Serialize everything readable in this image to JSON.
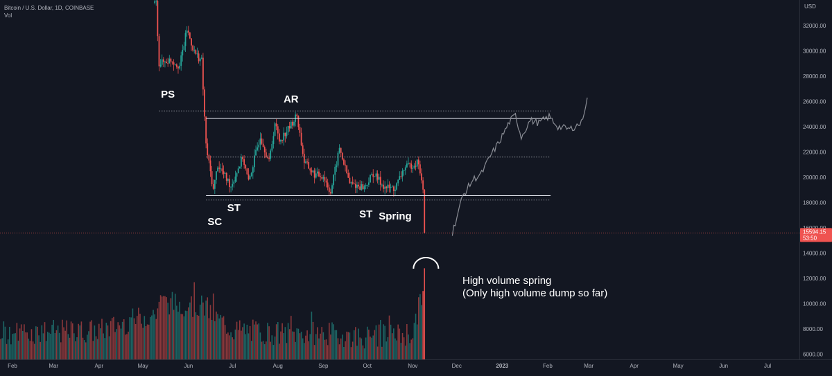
{
  "header": {
    "symbol_line": "Bitcoin / U.S. Dollar, 1D, COINBASE",
    "vol_label": "Vol"
  },
  "colors": {
    "background": "#131722",
    "up": "#26a69a",
    "down": "#ef5350",
    "projection": "#8a8d95",
    "axis_text": "#b2b5be",
    "price_tag": "#ef5350"
  },
  "chart_data": {
    "type": "candlestick",
    "axis_currency": "USD",
    "y_ticks": [
      6000,
      8000,
      10000,
      12000,
      14000,
      16000,
      18000,
      20000,
      22000,
      24000,
      26000,
      28000,
      30000,
      32000
    ],
    "y_tick_labels": [
      "6000.00",
      "8000.00",
      "10000.00",
      "12000.00",
      "14000.00",
      "16000.00",
      "18000.00",
      "20000.00",
      "22000.00",
      "24000.00",
      "26000.00",
      "28000.00",
      "30000.00",
      "32000.00"
    ],
    "x_labels": [
      "Feb",
      "Mar",
      "Apr",
      "May",
      "Jun",
      "Jul",
      "Aug",
      "Sep",
      "Oct",
      "Nov",
      "Dec",
      "2023",
      "Feb",
      "Mar",
      "Apr",
      "May",
      "Jun",
      "Jul"
    ],
    "last_price": "15594.15",
    "countdown": "53:50",
    "price_keypoints": [
      [
        "2022-05-10",
        33800
      ],
      [
        "2022-05-12",
        29000
      ],
      [
        "2022-05-20",
        29300
      ],
      [
        "2022-05-26",
        28800
      ],
      [
        "2022-05-31",
        31700
      ],
      [
        "2022-06-05",
        29900
      ],
      [
        "2022-06-10",
        29200
      ],
      [
        "2022-06-13",
        22500
      ],
      [
        "2022-06-18",
        19000
      ],
      [
        "2022-06-21",
        21000
      ],
      [
        "2022-06-30",
        19300
      ],
      [
        "2022-07-08",
        21600
      ],
      [
        "2022-07-12",
        19600
      ],
      [
        "2022-07-20",
        23300
      ],
      [
        "2022-07-26",
        21200
      ],
      [
        "2022-07-30",
        24300
      ],
      [
        "2022-08-02",
        22900
      ],
      [
        "2022-08-08",
        23800
      ],
      [
        "2022-08-14",
        24900
      ],
      [
        "2022-08-19",
        21200
      ],
      [
        "2022-08-26",
        20200
      ],
      [
        "2022-09-01",
        20100
      ],
      [
        "2022-09-06",
        18800
      ],
      [
        "2022-09-12",
        22300
      ],
      [
        "2022-09-19",
        19500
      ],
      [
        "2022-09-29",
        19200
      ],
      [
        "2022-10-05",
        20300
      ],
      [
        "2022-10-13",
        19200
      ],
      [
        "2022-10-20",
        19100
      ],
      [
        "2022-10-26",
        20700
      ],
      [
        "2022-11-05",
        21200
      ],
      [
        "2022-11-08",
        18800
      ],
      [
        "2022-11-09",
        15594
      ]
    ],
    "volume_keypoints": [
      [
        "2022-01-01",
        7600
      ],
      [
        "2022-04-01",
        7800
      ],
      [
        "2022-05-10",
        9200
      ],
      [
        "2022-05-12",
        10100
      ],
      [
        "2022-06-13",
        9700
      ],
      [
        "2022-06-18",
        9000
      ],
      [
        "2022-07-01",
        7900
      ],
      [
        "2022-08-01",
        7600
      ],
      [
        "2022-09-01",
        7600
      ],
      [
        "2022-10-01",
        7300
      ],
      [
        "2022-11-01",
        7600
      ],
      [
        "2022-11-08",
        11000
      ],
      [
        "2022-11-09",
        12800
      ]
    ],
    "projection": [
      [
        "2022-11-28",
        15600
      ],
      [
        "2022-12-05",
        18500
      ],
      [
        "2022-12-12",
        19800
      ],
      [
        "2022-12-18",
        20300
      ],
      [
        "2022-12-24",
        21700
      ],
      [
        "2022-12-30",
        22800
      ],
      [
        "2023-01-06",
        24400
      ],
      [
        "2023-01-10",
        24900
      ],
      [
        "2023-01-14",
        23200
      ],
      [
        "2023-01-20",
        24500
      ],
      [
        "2023-01-26",
        24300
      ],
      [
        "2023-02-02",
        24800
      ],
      [
        "2023-02-08",
        24000
      ],
      [
        "2023-02-16",
        23800
      ],
      [
        "2023-02-24",
        24300
      ],
      [
        "2023-02-28",
        26300
      ]
    ],
    "horizontal_lines": [
      {
        "price": 25250,
        "from": "2022-05-12",
        "to": "2023-02-03",
        "style": "dotted"
      },
      {
        "price": 24650,
        "from": "2022-06-13",
        "to": "2023-02-03",
        "style": "solid"
      },
      {
        "price": 21600,
        "from": "2022-06-13",
        "to": "2023-02-03",
        "style": "dotted"
      },
      {
        "price": 18550,
        "from": "2022-06-13",
        "to": "2023-02-03",
        "style": "solid"
      },
      {
        "price": 18200,
        "from": "2022-06-13",
        "to": "2023-02-03",
        "style": "dotted"
      }
    ],
    "labels": [
      "PS",
      "AR",
      "SC",
      "ST",
      "ST",
      "Spring"
    ],
    "annotation": [
      "High volume spring",
      "(Only high volume dump so far)"
    ]
  }
}
